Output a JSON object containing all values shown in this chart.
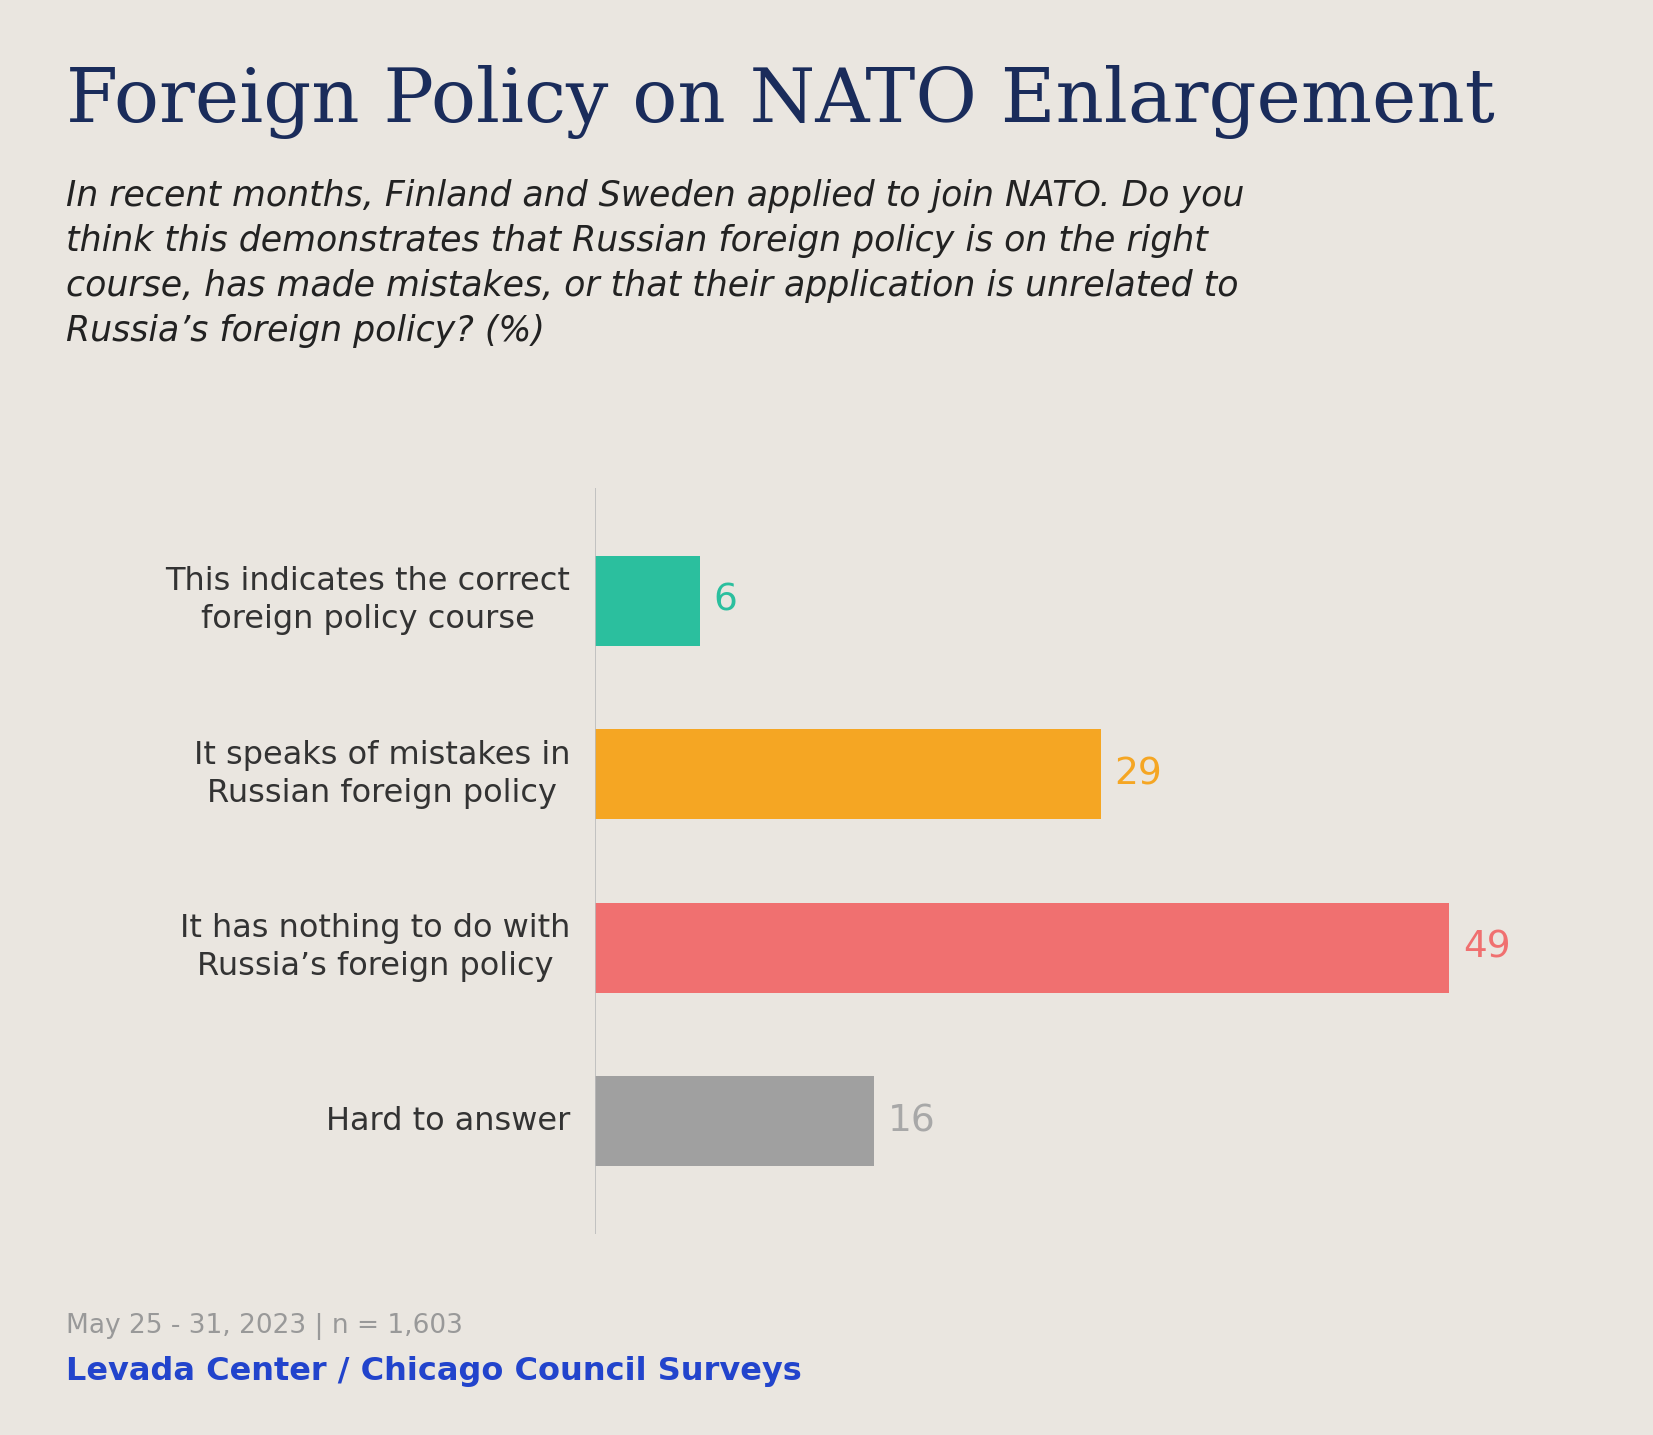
{
  "title": "Foreign Policy on NATO Enlargement",
  "subtitle_lines": [
    "In recent months, Finland and Sweden applied to join NATO. Do you",
    "think this demonstrates that Russian foreign policy is on the right",
    "course, has made mistakes, or that their application is unrelated to",
    "Russia’s foreign policy? (%)"
  ],
  "categories": [
    "This indicates the correct\nforeign policy course",
    "It speaks of mistakes in\nRussian foreign policy",
    "It has nothing to do with\nRussia’s foreign policy",
    "Hard to answer"
  ],
  "values": [
    6,
    29,
    49,
    16
  ],
  "bar_colors": [
    "#2bbf9e",
    "#f5a623",
    "#f07070",
    "#a0a0a0"
  ],
  "value_colors": [
    "#2bbf9e",
    "#f5a623",
    "#f07070",
    "#a8a8a8"
  ],
  "background_color": "#eae6e0",
  "title_color": "#1a2c5b",
  "subtitle_color": "#222222",
  "label_color": "#333333",
  "footer_date": "May 25 - 31, 2023 | n = 1,603",
  "footer_source": "Levada Center / Chicago Council Surveys",
  "footer_date_color": "#999999",
  "footer_source_color": "#2244cc",
  "xlim": [
    0,
    55
  ],
  "title_fontsize": 54,
  "subtitle_fontsize": 25,
  "label_fontsize": 23,
  "value_fontsize": 27,
  "footer_date_fontsize": 19,
  "footer_source_fontsize": 23
}
